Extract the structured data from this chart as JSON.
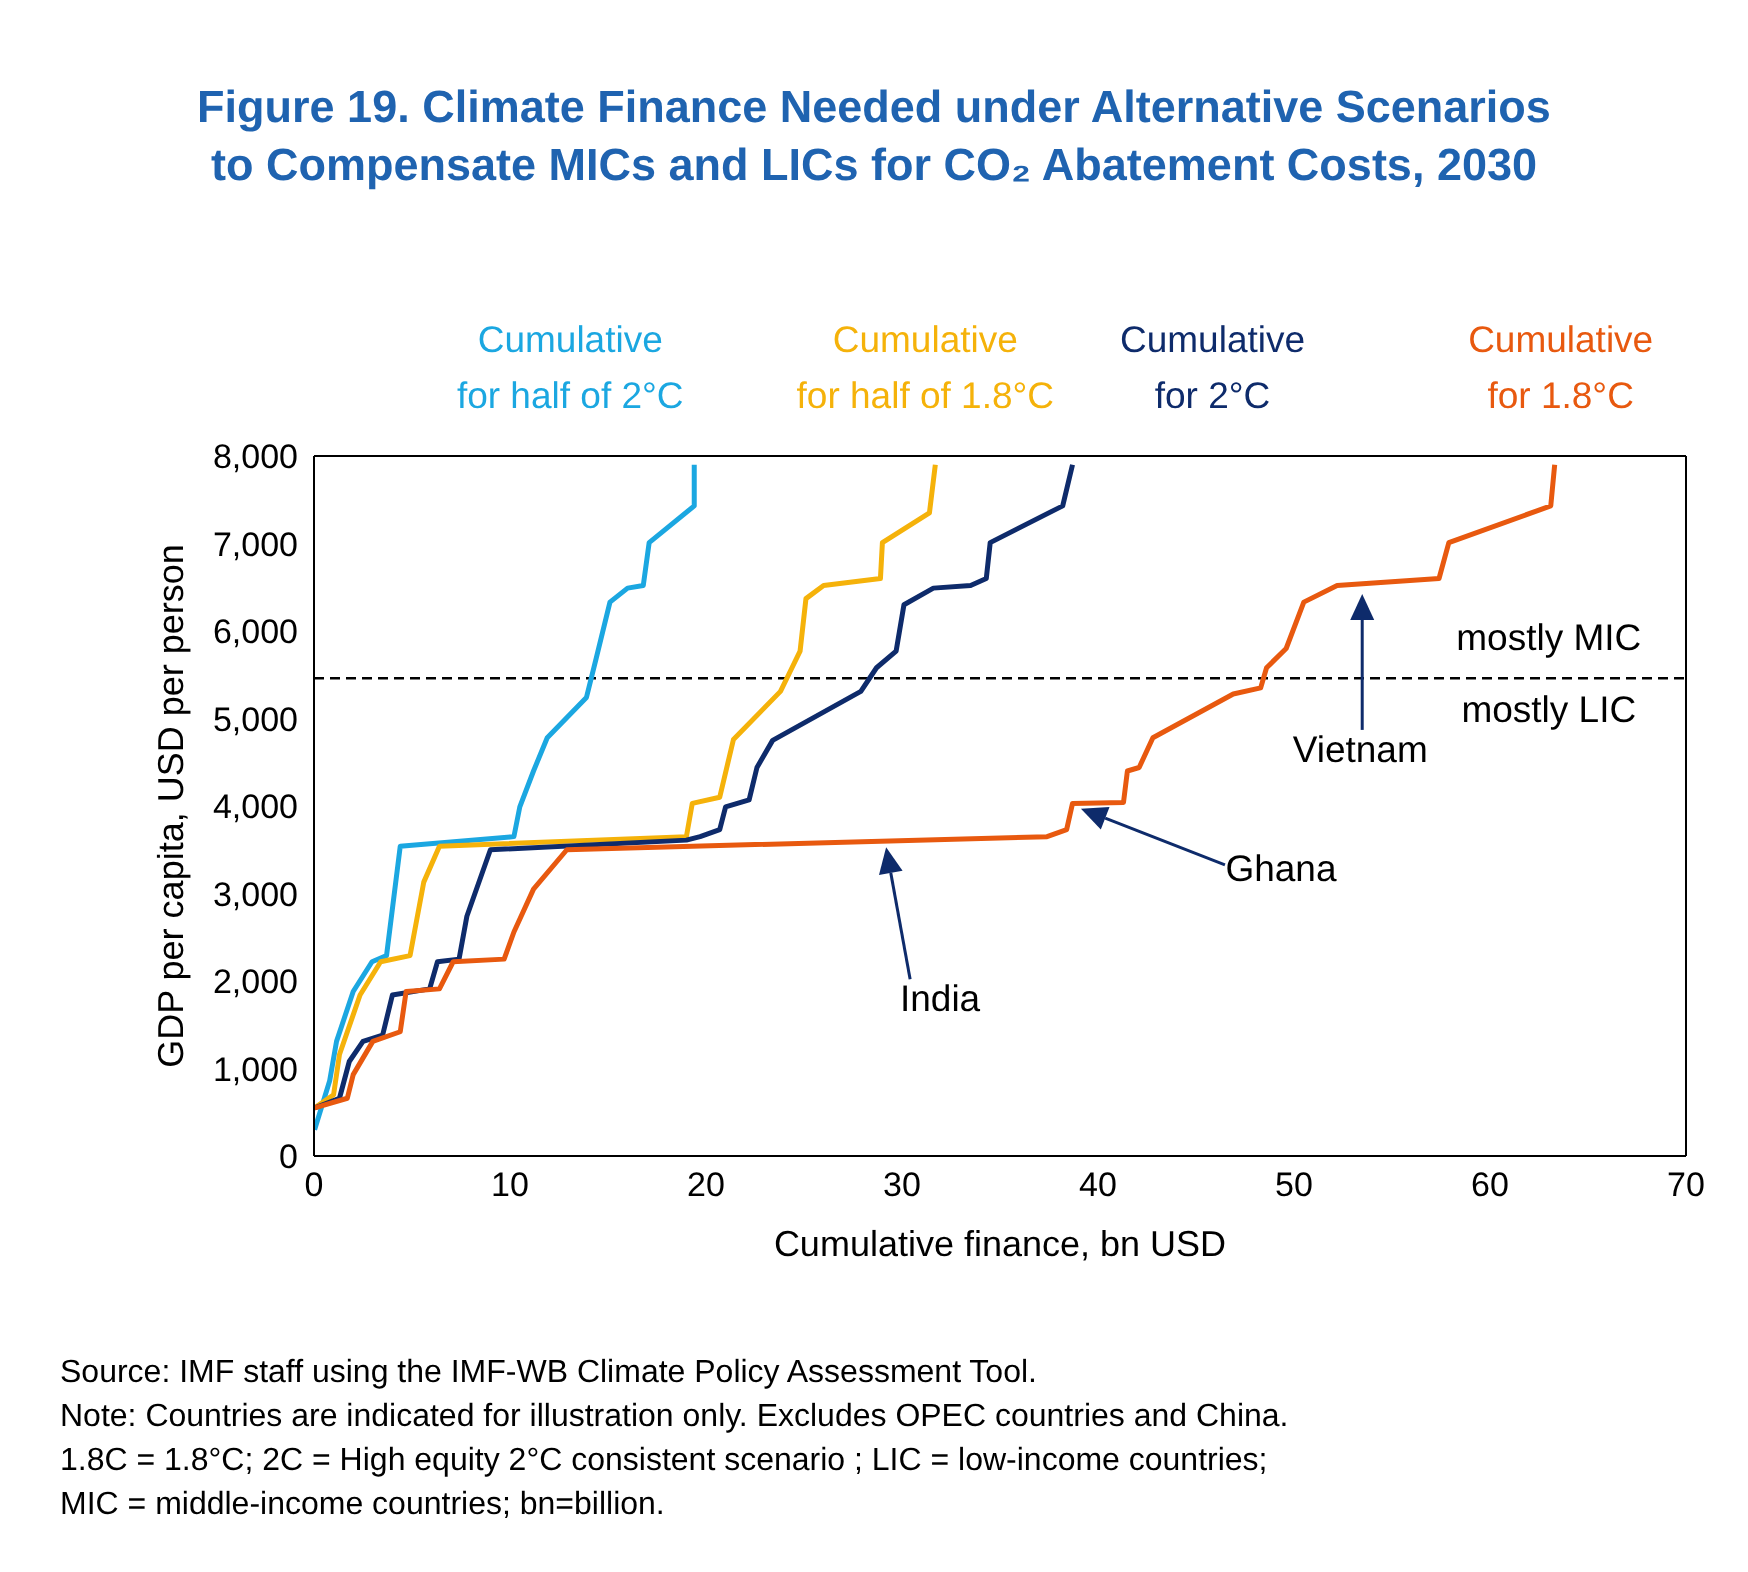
{
  "chart_data": {
    "type": "line",
    "title": "Figure 19. Climate Finance Needed under Alternative Scenarios to Compensate MICs and LICs for CO₂ Abatement Costs, 2030",
    "xlabel": "Cumulative finance, bn USD",
    "ylabel": "GDP per capita, USD per person",
    "xlim": [
      0,
      70
    ],
    "xticks": [
      0,
      10,
      20,
      30,
      40,
      50,
      60,
      70
    ],
    "ylim": [
      0,
      8000
    ],
    "yticks": [
      0,
      {
        "value": 1000,
        "label": "1,000"
      },
      {
        "value": 2000,
        "label": "2,000"
      },
      {
        "value": 3000,
        "label": "3,000"
      },
      {
        "value": 4000,
        "label": "4,000"
      },
      {
        "value": 5000,
        "label": "5,000"
      },
      {
        "value": 6000,
        "label": "6,000"
      },
      {
        "value": 7000,
        "label": "7,000"
      },
      {
        "value": 8000,
        "label": "8,000"
      }
    ],
    "grid": false,
    "marker": "none",
    "line_style": "solid",
    "series": [
      {
        "name": "Cumulative for half of 2°C",
        "color": "#1ba7e1",
        "x": [
          0.03,
          0.8,
          1.15,
          2.0,
          2.96,
          3.7,
          4.4,
          10.2,
          10.5,
          11.2,
          11.9,
          13.9,
          14.4,
          15.1,
          16.0,
          16.8,
          17.1,
          19.4,
          19.4
        ],
        "values": [
          300,
          860,
          1310,
          1880,
          2220,
          2290,
          3540,
          3650,
          3990,
          4400,
          4780,
          5240,
          5690,
          6330,
          6490,
          6520,
          7010,
          7430,
          7900
        ]
      },
      {
        "name": "Cumulative for half of 1.8°C",
        "color": "#f5b20a",
        "x": [
          0.03,
          1.0,
          1.3,
          2.35,
          3.4,
          4.9,
          5.6,
          6.4,
          19.0,
          19.3,
          20.7,
          21.4,
          23.8,
          24.3,
          24.8,
          25.1,
          26.0,
          28.9,
          29.0,
          31.4,
          31.7
        ],
        "values": [
          550,
          700,
          1160,
          1840,
          2220,
          2290,
          3130,
          3540,
          3650,
          4030,
          4100,
          4760,
          5310,
          5540,
          5770,
          6370,
          6520,
          6600,
          7010,
          7350,
          7900
        ]
      },
      {
        "name": "Cumulative for 2°C",
        "color": "#0e2b6b",
        "x": [
          0.03,
          1.3,
          1.8,
          2.5,
          3.5,
          4.0,
          5.9,
          6.3,
          7.4,
          7.8,
          9.0,
          19.0,
          19.7,
          20.7,
          21.0,
          22.2,
          22.6,
          23.4,
          27.9,
          28.7,
          29.7,
          30.1,
          31.6,
          33.5,
          34.3,
          34.5,
          38.2,
          38.7
        ],
        "values": [
          550,
          660,
          1080,
          1310,
          1380,
          1840,
          1910,
          2220,
          2250,
          2740,
          3500,
          3610,
          3650,
          3730,
          3990,
          4070,
          4440,
          4750,
          5310,
          5580,
          5770,
          6300,
          6490,
          6520,
          6600,
          7010,
          7430,
          7900
        ]
      },
      {
        "name": "Cumulative for 1.8°C",
        "color": "#e8590f",
        "x": [
          0.03,
          1.7,
          2.0,
          3.0,
          4.4,
          4.7,
          6.4,
          7.1,
          9.7,
          10.2,
          11.2,
          12.9,
          37.4,
          38.4,
          38.7,
          41.3,
          41.5,
          42.1,
          42.8,
          46.9,
          48.3,
          48.6,
          49.6,
          50.5,
          52.2,
          57.4,
          57.9,
          63.1,
          63.3
        ],
        "values": [
          550,
          660,
          930,
          1310,
          1420,
          1880,
          1910,
          2220,
          2250,
          2560,
          3050,
          3500,
          3650,
          3730,
          4030,
          4040,
          4400,
          4440,
          4780,
          5280,
          5350,
          5580,
          5800,
          6330,
          6520,
          6600,
          7010,
          7430,
          7900
        ]
      }
    ],
    "ref_lines": [
      {
        "axis": "y",
        "value": 5460,
        "color": "#000000",
        "line_style": "dashed"
      }
    ],
    "annotations": [
      "India",
      "Ghana",
      "Vietnam",
      {
        "text": "mostly MIC",
        "x": 63,
        "y": 5460
      },
      {
        "text": "mostly LIC",
        "x": 63,
        "y": 5460
      },
      "Source: IMF staff using the IMF-WB Climate Policy Assessment Tool.",
      "Note: Countries are indicated for illustration only. Excludes OPEC countries and China.",
      "1.8C = 1.8°C; 2C = High equity 2°C consistent scenario ; LIC = low-income countries;",
      "MIC = middle-income countries; bn=billion."
    ]
  }
}
